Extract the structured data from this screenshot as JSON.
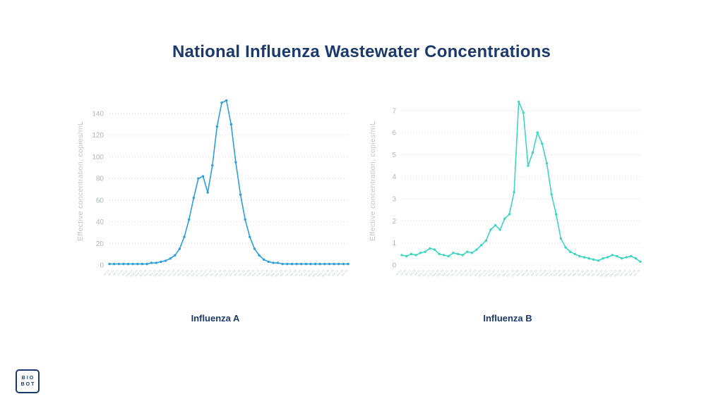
{
  "title": "National Influenza Wastewater Concentrations",
  "logo": {
    "line1": "BIO",
    "line2": "BOT"
  },
  "colors": {
    "title_navy": "#1b3a6b",
    "influenza_a_blue": "#2d9fdb",
    "influenza_b_teal": "#3ed6c3",
    "axis_label_gray": "#bfc7ce",
    "tick_gray": "#aeb8c0",
    "gridline_gray": "#d7dde2"
  },
  "chart_data": [
    {
      "type": "line",
      "caption": "Influenza A",
      "ylabel": "Effective concentration, copies/mL",
      "color": "#2d9fdb",
      "ylim": [
        0,
        155
      ],
      "ymax": 155,
      "yticks": [
        0,
        20,
        40,
        60,
        80,
        100,
        120,
        140
      ],
      "grid": "dotted",
      "legend": "none",
      "categories": [
        "Jul 03",
        "Jul 10",
        "Jul 17",
        "Jul 24",
        "Jul 31",
        "Aug 07",
        "Aug 14",
        "Aug 21",
        "Aug 28",
        "Sep 04",
        "Sep 11",
        "Sep 18",
        "Sep 25",
        "Oct 02",
        "Oct 09",
        "Oct 16",
        "Oct 23",
        "Oct 30",
        "Nov 06",
        "Nov 13",
        "Nov 20",
        "Nov 27",
        "Dec 04",
        "Dec 11",
        "Dec 18",
        "Dec 25",
        "Jan 01",
        "Jan 08",
        "Jan 15",
        "Jan 22",
        "Jan 29",
        "Feb 05",
        "Feb 12",
        "Feb 19",
        "Feb 26",
        "Mar 05",
        "Mar 12",
        "Mar 19",
        "Mar 26",
        "Apr 02",
        "Apr 09",
        "Apr 16",
        "Apr 23",
        "Apr 30",
        "May 07",
        "May 14",
        "May 21",
        "May 28",
        "Jun 04",
        "Jun 11",
        "Jun 18",
        "Jun 25"
      ],
      "values": [
        1,
        1,
        1,
        1,
        1,
        1,
        1,
        1,
        1,
        2,
        2,
        3,
        4,
        6,
        9,
        15,
        26,
        42,
        62,
        80,
        82,
        67,
        92,
        128,
        150,
        152,
        130,
        95,
        65,
        42,
        26,
        15,
        9,
        5,
        3,
        2,
        2,
        1,
        1,
        1,
        1,
        1,
        1,
        1,
        1,
        1,
        1,
        1,
        1,
        1,
        1,
        1
      ]
    },
    {
      "type": "line",
      "caption": "Influenza B",
      "ylabel": "Effective concentration, copies/mL",
      "color": "#3ed6c3",
      "ylim": [
        0,
        7.6
      ],
      "ymax": 7.6,
      "yticks": [
        0,
        1,
        2,
        3,
        4,
        5,
        6,
        7
      ],
      "grid": "dotted",
      "legend": "none",
      "categories": [
        "Jul 03",
        "Jul 10",
        "Jul 17",
        "Jul 24",
        "Jul 31",
        "Aug 07",
        "Aug 14",
        "Aug 21",
        "Aug 28",
        "Sep 04",
        "Sep 11",
        "Sep 18",
        "Sep 25",
        "Oct 02",
        "Oct 09",
        "Oct 16",
        "Oct 23",
        "Oct 30",
        "Nov 06",
        "Nov 13",
        "Nov 20",
        "Nov 27",
        "Dec 04",
        "Dec 11",
        "Dec 18",
        "Dec 25",
        "Jan 01",
        "Jan 08",
        "Jan 15",
        "Jan 22",
        "Jan 29",
        "Feb 05",
        "Feb 12",
        "Feb 19",
        "Feb 26",
        "Mar 05",
        "Mar 12",
        "Mar 19",
        "Mar 26",
        "Apr 02",
        "Apr 09",
        "Apr 16",
        "Apr 23",
        "Apr 30",
        "May 07",
        "May 14",
        "May 21",
        "May 28",
        "Jun 04",
        "Jun 11",
        "Jun 18",
        "Jun 25"
      ],
      "values": [
        0.45,
        0.4,
        0.5,
        0.45,
        0.55,
        0.6,
        0.75,
        0.7,
        0.5,
        0.45,
        0.4,
        0.55,
        0.5,
        0.45,
        0.6,
        0.55,
        0.7,
        0.9,
        1.1,
        1.6,
        1.8,
        1.6,
        2.1,
        2.3,
        3.3,
        7.4,
        6.9,
        4.5,
        5.1,
        6.0,
        5.5,
        4.6,
        3.2,
        2.3,
        1.2,
        0.8,
        0.6,
        0.5,
        0.4,
        0.35,
        0.3,
        0.25,
        0.2,
        0.3,
        0.35,
        0.45,
        0.4,
        0.3,
        0.35,
        0.4,
        0.3,
        0.15
      ]
    }
  ]
}
